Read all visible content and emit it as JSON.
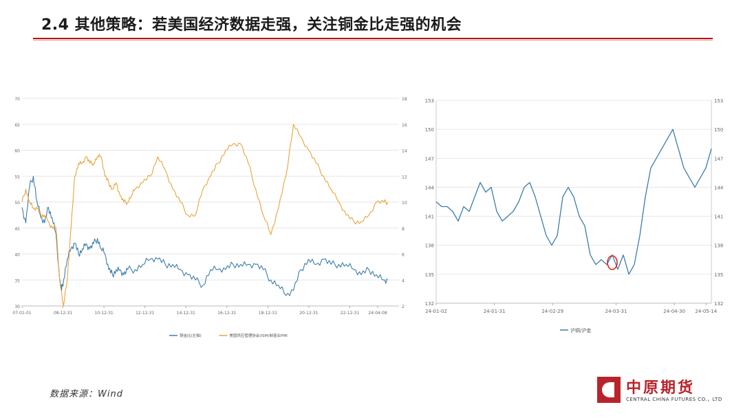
{
  "page": {
    "title": "2.4 其他策略：若美国经济数据走强，关注铜金比走强的机会",
    "source": "数据来源：Wind",
    "logo_name": "中原期货",
    "logo_en": "CENTRAL CHINA FUTURES CO.，LTD"
  },
  "colors": {
    "accent": "#c00000",
    "blue": "#3b7cab",
    "orange": "#e8a33c",
    "marker": "#e02020"
  },
  "chart_data": [
    {
      "type": "line",
      "x_ticks": [
        "07-01-01",
        "08-12-31",
        "10-12-31",
        "12-12-31",
        "14-12-31",
        "16-12-31",
        "18-12-31",
        "20-12-31",
        "22-12-31",
        "24-04-08"
      ],
      "x_tick_pos": [
        0,
        0.1087,
        0.2174,
        0.3261,
        0.4348,
        0.5435,
        0.6522,
        0.7609,
        0.8696,
        0.9435
      ],
      "y_left_ticks": [
        "70",
        "65",
        "60",
        "55",
        "50",
        "45",
        "40",
        "35",
        "30"
      ],
      "y_right_ticks": [
        "18",
        "16",
        "14",
        "12",
        "10",
        "8",
        "6",
        "4",
        "2"
      ],
      "ylim_left": [
        30,
        70
      ],
      "ylim_right": [
        2,
        18
      ],
      "grid": "horizontal",
      "legend_position": "bottom",
      "series": [
        {
          "name": "铜金比(左轴)",
          "axis": "left",
          "color": "#3b7cab",
          "x": [
            0,
            0.01,
            0.02,
            0.03,
            0.04,
            0.05,
            0.06,
            0.07,
            0.08,
            0.09,
            0.1,
            0.105,
            0.11,
            0.12,
            0.13,
            0.14,
            0.15,
            0.16,
            0.17,
            0.18,
            0.19,
            0.2,
            0.21,
            0.22,
            0.23,
            0.24,
            0.25,
            0.26,
            0.27,
            0.28,
            0.3,
            0.32,
            0.34,
            0.36,
            0.38,
            0.4,
            0.42,
            0.44,
            0.46,
            0.48,
            0.5,
            0.52,
            0.54,
            0.56,
            0.58,
            0.6,
            0.62,
            0.64,
            0.66,
            0.68,
            0.7,
            0.72,
            0.74,
            0.76,
            0.78,
            0.8,
            0.82,
            0.84,
            0.86,
            0.88,
            0.9,
            0.92,
            0.94,
            0.96,
            0.97
          ],
          "values": [
            49,
            46,
            53,
            55,
            50,
            47,
            46,
            49,
            47,
            44,
            35,
            33,
            35,
            39,
            41,
            42,
            40,
            41,
            42,
            41,
            42,
            43,
            41,
            40,
            37,
            36,
            37,
            37,
            36,
            37,
            37,
            38,
            39,
            39,
            38,
            38,
            37,
            36,
            35,
            34,
            37,
            37,
            37,
            38,
            38,
            38,
            38,
            37,
            35,
            34,
            32,
            33,
            37,
            39,
            38,
            39,
            38,
            38,
            38,
            37,
            36,
            37,
            36,
            35,
            35
          ]
        },
        {
          "name": "美国供应管理协会(ISM)制造业PMI",
          "axis": "right",
          "color": "#e8a33c",
          "x": [
            0,
            0.01,
            0.02,
            0.03,
            0.04,
            0.05,
            0.06,
            0.07,
            0.08,
            0.09,
            0.1,
            0.11,
            0.12,
            0.13,
            0.14,
            0.15,
            0.16,
            0.17,
            0.18,
            0.19,
            0.2,
            0.21,
            0.22,
            0.23,
            0.24,
            0.25,
            0.26,
            0.27,
            0.28,
            0.29,
            0.3,
            0.32,
            0.34,
            0.36,
            0.38,
            0.4,
            0.42,
            0.44,
            0.46,
            0.48,
            0.5,
            0.52,
            0.54,
            0.56,
            0.58,
            0.6,
            0.62,
            0.64,
            0.66,
            0.68,
            0.7,
            0.72,
            0.74,
            0.76,
            0.78,
            0.8,
            0.82,
            0.84,
            0.86,
            0.88,
            0.9,
            0.92,
            0.94,
            0.96,
            0.97
          ],
          "values": [
            10,
            11,
            10,
            9.5,
            9.5,
            9,
            9,
            8.5,
            8,
            8,
            4,
            2,
            4,
            8,
            12,
            13,
            13,
            13.5,
            13,
            13,
            13.5,
            13.5,
            12,
            11.5,
            11,
            11.5,
            10.5,
            10,
            10,
            10.5,
            11,
            11.5,
            12,
            13.5,
            12.5,
            11,
            10,
            9,
            9,
            11,
            12,
            13,
            14,
            14.5,
            14.5,
            13,
            11,
            9,
            7.5,
            9.5,
            12,
            16,
            15,
            14,
            13,
            12,
            11,
            10,
            9,
            8.5,
            8.5,
            9,
            10,
            10,
            10
          ]
        }
      ]
    },
    {
      "type": "line",
      "x_ticks": [
        "24-01-02",
        "24-01-31",
        "24-02-29",
        "24-03-31",
        "24-04-30",
        "24-05-14"
      ],
      "x_tick_pos": [
        0,
        0.2115,
        0.4231,
        0.6538,
        0.8654,
        0.9808
      ],
      "y_ticks": [
        "153",
        "150",
        "147",
        "144",
        "141",
        "138",
        "135",
        "132"
      ],
      "ylim": [
        132,
        153
      ],
      "grid": "horizontal",
      "legend_position": "bottom",
      "series": [
        {
          "name": "沪铜/沪金",
          "color": "#3b7cab",
          "x": [
            0,
            0.02,
            0.04,
            0.06,
            0.08,
            0.1,
            0.12,
            0.14,
            0.16,
            0.18,
            0.2,
            0.22,
            0.24,
            0.26,
            0.28,
            0.3,
            0.32,
            0.34,
            0.36,
            0.38,
            0.4,
            0.42,
            0.44,
            0.46,
            0.48,
            0.5,
            0.52,
            0.54,
            0.56,
            0.58,
            0.6,
            0.62,
            0.64,
            0.66,
            0.68,
            0.7,
            0.72,
            0.74,
            0.76,
            0.78,
            0.8,
            0.82,
            0.84,
            0.86,
            0.88,
            0.9,
            0.92,
            0.94,
            0.96,
            0.98,
            1
          ],
          "values": [
            142.5,
            142,
            142,
            141.5,
            140.5,
            142,
            141.5,
            143,
            144.5,
            143.5,
            144,
            141.5,
            140.5,
            141,
            141.5,
            142.5,
            144,
            144.5,
            143,
            141,
            139,
            138,
            139,
            143,
            144,
            143,
            141,
            140,
            137,
            136,
            136.5,
            136,
            137,
            135.5,
            137,
            135,
            136,
            139,
            143,
            146,
            147,
            148,
            149,
            150,
            148,
            146,
            145,
            144,
            145,
            146,
            148
          ]
        }
      ],
      "annotation": {
        "type": "circle",
        "x": 0.64,
        "y": 136.2,
        "color": "#e02020"
      }
    }
  ]
}
